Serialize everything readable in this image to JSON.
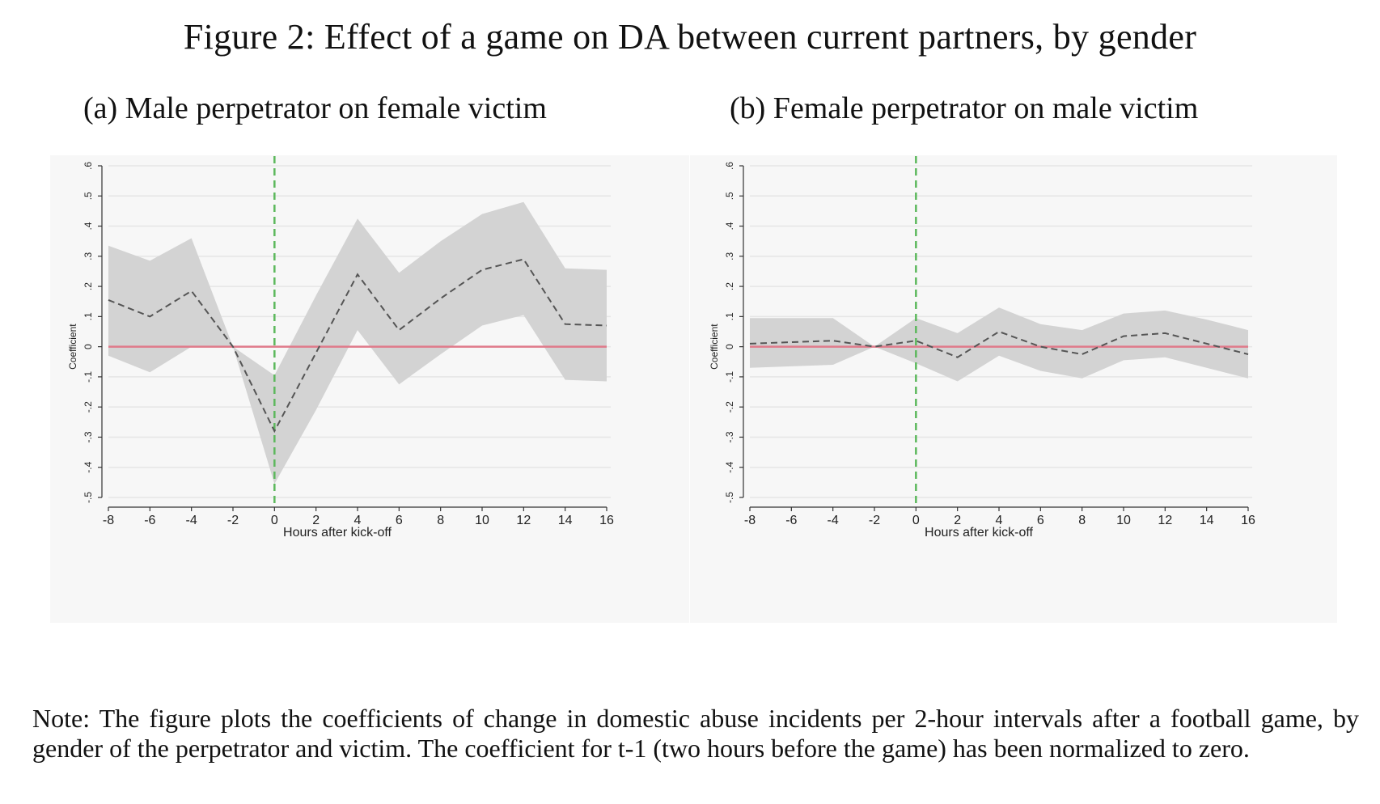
{
  "figure": {
    "title": "Figure 2: Effect of a game on DA between current partners, by gender",
    "note": "Note: The figure plots the coefficients of change in domestic abuse incidents per 2-hour intervals after a football game, by gender of the perpetrator and victim. The coefficient for t-1 (two hours before the game) has been normalized to zero."
  },
  "colors": {
    "ci_band": "#d3d3d3",
    "estimate_line": "#555555",
    "zero_line": "#e07a8a",
    "kickoff_line": "#5cb85c",
    "grid": "#e6e6e6",
    "panel_bg": "#f7f7f7"
  },
  "chart_data": [
    {
      "type": "area",
      "title": "(a) Male perpetrator on female victim",
      "xlabel": "Hours after kick-off",
      "ylabel": "Coefficient",
      "xlim": [
        -8,
        16
      ],
      "ylim": [
        -0.5,
        0.6
      ],
      "x_ticks": [
        -8,
        -6,
        -4,
        -2,
        0,
        2,
        4,
        6,
        8,
        10,
        12,
        14,
        16
      ],
      "y_ticks": [
        -0.5,
        -0.4,
        -0.3,
        -0.2,
        -0.1,
        0,
        0.1,
        0.2,
        0.3,
        0.4,
        0.5,
        0.6
      ],
      "y_tick_labels": [
        "-.5",
        "-.4",
        "-.3",
        "-.2",
        "-.1",
        "0",
        ".1",
        ".2",
        ".3",
        ".4",
        ".5",
        ".6"
      ],
      "grid": true,
      "reference_lines": {
        "vertical_x": 0,
        "horizontal_y": 0
      },
      "x": [
        -8,
        -6,
        -4,
        -2,
        0,
        2,
        4,
        6,
        8,
        10,
        12,
        14,
        16
      ],
      "series": [
        {
          "name": "",
          "role": "estimate",
          "values": [
            0.155,
            0.1,
            0.185,
            0.0,
            -0.28,
            -0.02,
            0.24,
            0.055,
            0.16,
            0.255,
            0.29,
            0.075,
            0.07
          ]
        },
        {
          "name": "",
          "role": "ci_upper",
          "values": [
            0.335,
            0.285,
            0.36,
            0.0,
            -0.095,
            0.17,
            0.425,
            0.245,
            0.35,
            0.44,
            0.48,
            0.26,
            0.255
          ]
        },
        {
          "name": "",
          "role": "ci_lower",
          "values": [
            -0.03,
            -0.085,
            0.0,
            0.0,
            -0.455,
            -0.21,
            0.055,
            -0.125,
            -0.025,
            0.07,
            0.105,
            -0.11,
            -0.115
          ]
        }
      ]
    },
    {
      "type": "area",
      "title": "(b) Female perpetrator on male victim",
      "xlabel": "Hours after kick-off",
      "ylabel": "Coefficient",
      "xlim": [
        -8,
        16
      ],
      "ylim": [
        -0.5,
        0.6
      ],
      "x_ticks": [
        -8,
        -6,
        -4,
        -2,
        0,
        2,
        4,
        6,
        8,
        10,
        12,
        14,
        16
      ],
      "y_ticks": [
        -0.5,
        -0.4,
        -0.3,
        -0.2,
        -0.1,
        0,
        0.1,
        0.2,
        0.3,
        0.4,
        0.5,
        0.6
      ],
      "y_tick_labels": [
        "-.5",
        "-.4",
        "-.3",
        "-.2",
        "-.1",
        "0",
        ".1",
        ".2",
        ".3",
        ".4",
        ".5",
        ".6"
      ],
      "grid": true,
      "reference_lines": {
        "vertical_x": 0,
        "horizontal_y": 0
      },
      "x": [
        -8,
        -6,
        -4,
        -2,
        0,
        2,
        4,
        6,
        8,
        10,
        12,
        14,
        16
      ],
      "series": [
        {
          "name": "",
          "role": "estimate",
          "values": [
            0.01,
            0.015,
            0.02,
            0.0,
            0.02,
            -0.035,
            0.05,
            0.0,
            -0.025,
            0.035,
            0.045,
            0.01,
            -0.025
          ]
        },
        {
          "name": "",
          "role": "ci_upper",
          "values": [
            0.095,
            0.095,
            0.095,
            0.0,
            0.095,
            0.045,
            0.13,
            0.075,
            0.055,
            0.11,
            0.12,
            0.09,
            0.055
          ]
        },
        {
          "name": "",
          "role": "ci_lower",
          "values": [
            -0.07,
            -0.065,
            -0.06,
            0.0,
            -0.055,
            -0.115,
            -0.03,
            -0.08,
            -0.105,
            -0.045,
            -0.035,
            -0.07,
            -0.105
          ]
        }
      ]
    }
  ]
}
